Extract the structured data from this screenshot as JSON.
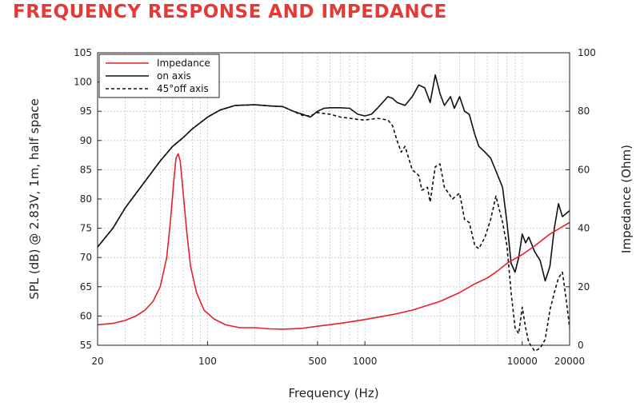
{
  "title": "FREQUENCY RESPONSE AND IMPEDANCE",
  "chart_data": {
    "type": "line",
    "xscale": "log",
    "xlim": [
      20,
      20000
    ],
    "ylim_left": [
      55,
      105
    ],
    "ylim_right": [
      0,
      100
    ],
    "xlabel": "Frequency (Hz)",
    "ylabel_left": "SPL (dB) @ 2.83V, 1m, half space",
    "ylabel_right": "Impedance (Ohm)",
    "x_ticks": [
      20,
      100,
      500,
      1000,
      10000,
      20000
    ],
    "y_ticks_left": [
      55,
      60,
      65,
      70,
      75,
      80,
      85,
      90,
      95,
      100,
      105
    ],
    "y_ticks_right": [
      0,
      20,
      40,
      60,
      80,
      100
    ],
    "grid": true,
    "legend_position": "top-left",
    "series": [
      {
        "name": "Impedance",
        "axis": "right",
        "color": "#e8202a",
        "dash": "solid",
        "points": [
          [
            20,
            7
          ],
          [
            25,
            7.5
          ],
          [
            30,
            8.5
          ],
          [
            35,
            10
          ],
          [
            40,
            12
          ],
          [
            45,
            15
          ],
          [
            50,
            20
          ],
          [
            55,
            30
          ],
          [
            58,
            42
          ],
          [
            61,
            56
          ],
          [
            63,
            64
          ],
          [
            65,
            65.5
          ],
          [
            67,
            63
          ],
          [
            70,
            52
          ],
          [
            74,
            38
          ],
          [
            78,
            27
          ],
          [
            85,
            18
          ],
          [
            95,
            12
          ],
          [
            110,
            9
          ],
          [
            130,
            7
          ],
          [
            160,
            6
          ],
          [
            200,
            6
          ],
          [
            250,
            5.6
          ],
          [
            300,
            5.5
          ],
          [
            400,
            5.8
          ],
          [
            500,
            6.5
          ],
          [
            700,
            7.5
          ],
          [
            1000,
            8.8
          ],
          [
            1500,
            10.5
          ],
          [
            2000,
            12
          ],
          [
            3000,
            15
          ],
          [
            4000,
            18
          ],
          [
            5000,
            21
          ],
          [
            6000,
            23
          ],
          [
            7000,
            25.5
          ],
          [
            8000,
            28
          ],
          [
            10000,
            31
          ],
          [
            12000,
            34
          ],
          [
            15000,
            38
          ],
          [
            20000,
            42
          ]
        ]
      },
      {
        "name": "on axis",
        "axis": "left",
        "color": "#111111",
        "dash": "solid",
        "points": [
          [
            20,
            71.8
          ],
          [
            25,
            75
          ],
          [
            30,
            78.5
          ],
          [
            40,
            83
          ],
          [
            50,
            86.5
          ],
          [
            60,
            89
          ],
          [
            70,
            90.5
          ],
          [
            80,
            92
          ],
          [
            100,
            94
          ],
          [
            120,
            95.2
          ],
          [
            150,
            96
          ],
          [
            200,
            96.1
          ],
          [
            250,
            95.9
          ],
          [
            300,
            95.8
          ],
          [
            350,
            95
          ],
          [
            400,
            94.5
          ],
          [
            450,
            94
          ],
          [
            500,
            95
          ],
          [
            550,
            95.5
          ],
          [
            600,
            95.6
          ],
          [
            700,
            95.6
          ],
          [
            800,
            95.5
          ],
          [
            900,
            94.5
          ],
          [
            1000,
            94.2
          ],
          [
            1100,
            94.5
          ],
          [
            1200,
            95.5
          ],
          [
            1400,
            97.5
          ],
          [
            1500,
            97.2
          ],
          [
            1600,
            96.5
          ],
          [
            1800,
            96
          ],
          [
            2000,
            97.5
          ],
          [
            2200,
            99.5
          ],
          [
            2400,
            99
          ],
          [
            2600,
            96.5
          ],
          [
            2800,
            101.2
          ],
          [
            3000,
            98
          ],
          [
            3200,
            96
          ],
          [
            3500,
            97.5
          ],
          [
            3700,
            95.5
          ],
          [
            4000,
            97.5
          ],
          [
            4300,
            95
          ],
          [
            4600,
            94.5
          ],
          [
            5000,
            91
          ],
          [
            5300,
            89
          ],
          [
            5800,
            88
          ],
          [
            6300,
            87
          ],
          [
            7000,
            84
          ],
          [
            7500,
            82
          ],
          [
            8000,
            76
          ],
          [
            8500,
            69
          ],
          [
            9000,
            67.5
          ],
          [
            9500,
            70
          ],
          [
            10000,
            74
          ],
          [
            10500,
            72.5
          ],
          [
            11000,
            73.5
          ],
          [
            12000,
            71
          ],
          [
            13000,
            69.5
          ],
          [
            14000,
            66
          ],
          [
            15000,
            68.5
          ],
          [
            16000,
            75
          ],
          [
            17000,
            79.2
          ],
          [
            18000,
            77
          ],
          [
            19000,
            77.5
          ],
          [
            20000,
            78
          ]
        ]
      },
      {
        "name": "45°off axis",
        "axis": "left",
        "color": "#111111",
        "dash": "dashed",
        "points": [
          [
            20,
            71.8
          ],
          [
            25,
            75
          ],
          [
            30,
            78.5
          ],
          [
            40,
            83
          ],
          [
            50,
            86.5
          ],
          [
            60,
            89
          ],
          [
            70,
            90.5
          ],
          [
            80,
            92
          ],
          [
            100,
            94
          ],
          [
            120,
            95.2
          ],
          [
            150,
            96
          ],
          [
            200,
            96.1
          ],
          [
            250,
            95.9
          ],
          [
            300,
            95.8
          ],
          [
            350,
            95
          ],
          [
            400,
            94.3
          ],
          [
            450,
            94.2
          ],
          [
            500,
            94.8
          ],
          [
            550,
            94.6
          ],
          [
            600,
            94.5
          ],
          [
            700,
            94
          ],
          [
            800,
            93.8
          ],
          [
            900,
            93.6
          ],
          [
            1000,
            93.5
          ],
          [
            1200,
            93.8
          ],
          [
            1400,
            93.5
          ],
          [
            1500,
            92.5
          ],
          [
            1600,
            90
          ],
          [
            1700,
            88
          ],
          [
            1800,
            89
          ],
          [
            2000,
            85
          ],
          [
            2200,
            84
          ],
          [
            2300,
            81.5
          ],
          [
            2500,
            82
          ],
          [
            2600,
            79.5
          ],
          [
            2800,
            85.5
          ],
          [
            3000,
            86
          ],
          [
            3200,
            82
          ],
          [
            3400,
            81
          ],
          [
            3600,
            80
          ],
          [
            3800,
            80.5
          ],
          [
            4000,
            81
          ],
          [
            4300,
            76.5
          ],
          [
            4600,
            76
          ],
          [
            5000,
            72
          ],
          [
            5300,
            71.5
          ],
          [
            5800,
            73.5
          ],
          [
            6300,
            76.5
          ],
          [
            6800,
            80.5
          ],
          [
            7500,
            76
          ],
          [
            8000,
            72
          ],
          [
            8500,
            64
          ],
          [
            9000,
            58
          ],
          [
            9500,
            57
          ],
          [
            10000,
            61.5
          ],
          [
            10500,
            58
          ],
          [
            11000,
            55.5
          ],
          [
            12000,
            54
          ],
          [
            13000,
            54.5
          ],
          [
            14000,
            56
          ],
          [
            15000,
            61
          ],
          [
            16000,
            64
          ],
          [
            17000,
            66.5
          ],
          [
            18000,
            67.5
          ],
          [
            19000,
            63
          ],
          [
            20000,
            58
          ]
        ]
      }
    ]
  }
}
